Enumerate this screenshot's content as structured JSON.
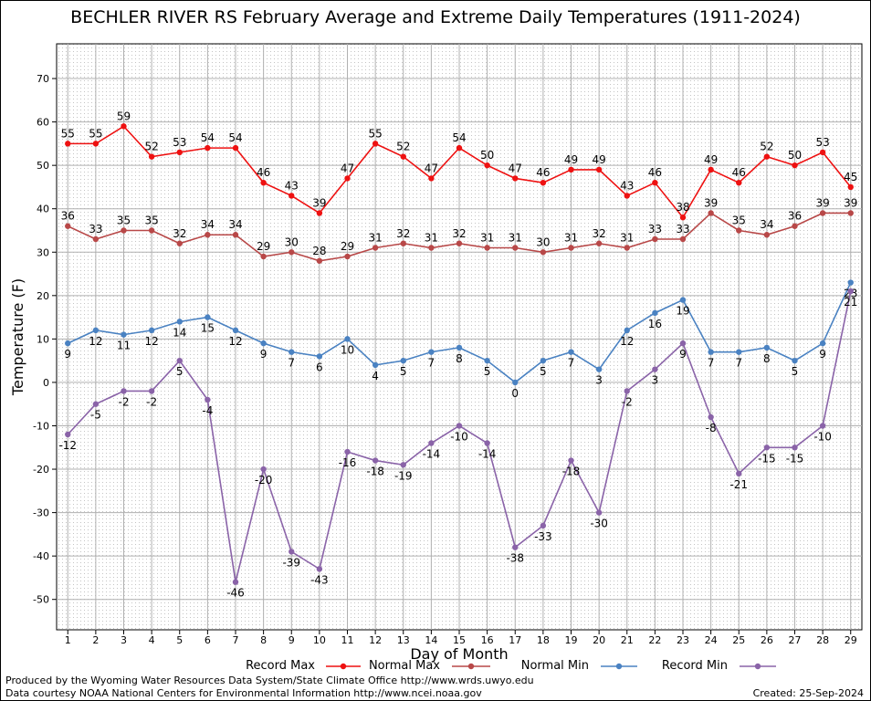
{
  "title": "BECHLER RIVER RS February Average and Extreme Daily Temperatures (1911-2024)",
  "footer": {
    "line1": "Produced by the Wyoming Water Resources Data System/State Climate Office http://www.wrds.uwyo.edu",
    "line2": "Data courtesy NOAA National Centers for Environmental Information http://www.ncei.noaa.gov",
    "created": "Created:  25-Sep-2024"
  },
  "chart_data": {
    "type": "line",
    "title": "BECHLER RIVER RS February Average and Extreme Daily Temperatures (1911-2024)",
    "xlabel": "Day of Month",
    "ylabel": "Temperature (F)",
    "x": [
      1,
      2,
      3,
      4,
      5,
      6,
      7,
      8,
      9,
      10,
      11,
      12,
      13,
      14,
      15,
      16,
      17,
      18,
      19,
      20,
      21,
      22,
      23,
      24,
      25,
      26,
      27,
      28,
      29
    ],
    "xlim": [
      0.6,
      29.4
    ],
    "ylim": [
      -57,
      78
    ],
    "yticks": [
      -50,
      -40,
      -30,
      -20,
      -10,
      0,
      10,
      20,
      30,
      40,
      50,
      60,
      70
    ],
    "grid": true,
    "legend_position": "bottom",
    "series": [
      {
        "name": "Record Max",
        "color": "#ee1111",
        "values": [
          55,
          55,
          59,
          52,
          53,
          54,
          54,
          46,
          43,
          39,
          47,
          55,
          52,
          47,
          54,
          50,
          47,
          46,
          49,
          49,
          43,
          46,
          38,
          49,
          46,
          52,
          50,
          53,
          45
        ]
      },
      {
        "name": "Normal Max",
        "color": "#b84848",
        "values": [
          36,
          33,
          35,
          35,
          32,
          34,
          34,
          29,
          30,
          28,
          29,
          31,
          32,
          31,
          32,
          31,
          31,
          30,
          31,
          32,
          31,
          33,
          33,
          39,
          35,
          34,
          36,
          39,
          39
        ]
      },
      {
        "name": "Normal Min",
        "color": "#4a82c2",
        "values": [
          9,
          12,
          11,
          12,
          14,
          15,
          12,
          9,
          7,
          6,
          10,
          4,
          5,
          7,
          8,
          5,
          0,
          5,
          7,
          3,
          12,
          16,
          19,
          7,
          7,
          8,
          5,
          9,
          23
        ]
      },
      {
        "name": "Record Min",
        "color": "#8a63a8",
        "values": [
          -12,
          -5,
          -2,
          -2,
          5,
          -4,
          -46,
          -20,
          -39,
          -43,
          -16,
          -18,
          -19,
          -14,
          -10,
          -14,
          -38,
          -33,
          -18,
          -30,
          -2,
          3,
          9,
          -8,
          -21,
          -15,
          -15,
          -10,
          21
        ]
      }
    ]
  }
}
